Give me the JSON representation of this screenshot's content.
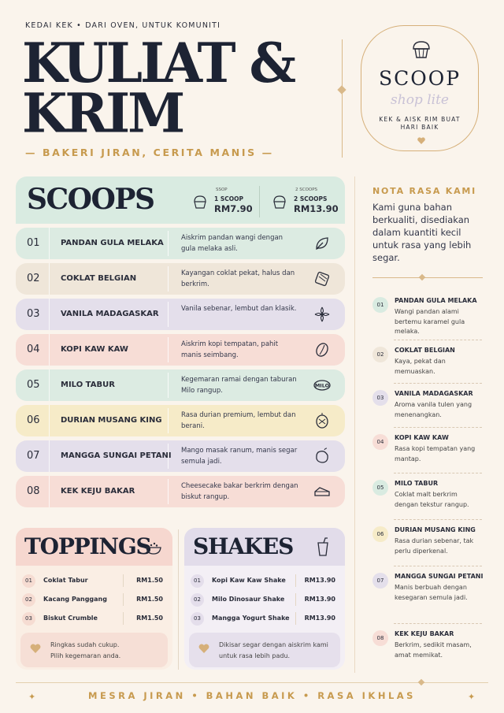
{
  "header": {
    "kicker": "KEDAI KEK • DARI OVEN, UNTUK KOMUNITI",
    "title_line1": "KULIAT &",
    "title_line2": "KRIM",
    "subtitle": "— BAKERI JIRAN, CERITA MANIS —"
  },
  "badge": {
    "brand": "SCOOP",
    "script": "shop lite",
    "tagline": "KEK & AISK RIM BUAT HARI BAIK"
  },
  "scoops": {
    "title": "SCOOPS",
    "prices": [
      {
        "small": "SSOP",
        "label": "1 SCOOP",
        "value": "RM7.90"
      },
      {
        "small": "2 SCOOPS",
        "label": "2 SCOOPS",
        "value": "RM13.90"
      }
    ],
    "items": [
      {
        "num": "01",
        "name": "PANDAN GULA MELAKA",
        "desc": "Aiskrim pandan wangi dengan gula melaka asli.",
        "icon": "leaf-icon",
        "color": "#dcebe2"
      },
      {
        "num": "02",
        "name": "COKLAT BELGIAN",
        "desc": "Kayangan coklat pekat, halus dan berkrim.",
        "icon": "chocolate-icon",
        "color": "#efe6d9"
      },
      {
        "num": "03",
        "name": "VANILA MADAGASKAR",
        "desc": "Vanila sebenar, lembut dan klasik.",
        "icon": "vanilla-flower-icon",
        "color": "#e4dfeb"
      },
      {
        "num": "04",
        "name": "KOPI KAW KAW",
        "desc": "Aiskrim kopi tempatan, pahit manis seimbang.",
        "icon": "coffee-bean-icon",
        "color": "#f7ddd6"
      },
      {
        "num": "05",
        "name": "MILO TABUR",
        "desc": "Kegemaran ramai dengan taburan Milo rangup.",
        "icon": "milo-icon",
        "color": "#dcebe2"
      },
      {
        "num": "06",
        "name": "DURIAN MUSANG KING",
        "desc": "Rasa durian premium, lembut dan berani.",
        "icon": "durian-icon",
        "color": "#f6ebc8"
      },
      {
        "num": "07",
        "name": "MANGGA SUNGAI PETANI",
        "desc": "Mango masak ranum, manis segar semula jadi.",
        "icon": "mango-icon",
        "color": "#e4dfeb"
      },
      {
        "num": "08",
        "name": "KEK KEJU BAKAR",
        "desc": "Cheesecake bakar berkrim dengan biskut rangup.",
        "icon": "cake-slice-icon",
        "color": "#f7ddd6"
      }
    ]
  },
  "toppings": {
    "title": "TOPPINGS",
    "items": [
      {
        "num": "01",
        "name": "Coklat Tabur",
        "price": "RM1.50"
      },
      {
        "num": "02",
        "name": "Kacang Panggang",
        "price": "RM1.50"
      },
      {
        "num": "03",
        "name": "Biskut Crumble",
        "price": "RM1.50"
      }
    ],
    "note": [
      "Ringkas sudah cukup.",
      "Pilih kegemaran anda."
    ]
  },
  "shakes": {
    "title": "SHAKES",
    "items": [
      {
        "num": "01",
        "name": "Kopi Kaw Kaw Shake",
        "price": "RM13.90"
      },
      {
        "num": "02",
        "name": "Milo Dinosaur Shake",
        "price": "RM13.90"
      },
      {
        "num": "03",
        "name": "Mangga Yogurt Shake",
        "price": "RM13.90"
      }
    ],
    "note": [
      "Dikisar segar dengan aiskrim kami",
      "untuk rasa lebih padu."
    ]
  },
  "sidebar": {
    "title": "NOTA RASA KAMI",
    "intro": "Kami guna bahan berkualiti, disediakan dalam kuantiti kecil untuk rasa yang lebih segar.",
    "items": [
      {
        "num": "01",
        "name": "PANDAN GULA MELAKA",
        "desc": "Wangi pandan alami bertemu karamel gula melaka.",
        "color": "#d9ebe1"
      },
      {
        "num": "02",
        "name": "COKLAT BELGIAN",
        "desc": "Kaya, pekat dan memuaskan.",
        "color": "#efe6d9"
      },
      {
        "num": "03",
        "name": "VANILA MADAGASKAR",
        "desc": "Aroma vanila tulen yang menenangkan.",
        "color": "#e4dfeb"
      },
      {
        "num": "04",
        "name": "KOPI KAW KAW",
        "desc": "Rasa kopi tempatan yang mantap.",
        "color": "#f7ddd6"
      },
      {
        "num": "05",
        "name": "MILO TABUR",
        "desc": "Coklat malt berkrim dengan tekstur rangup.",
        "color": "#d9ebe1"
      },
      {
        "num": "06",
        "name": "DURIAN MUSANG KING",
        "desc": "Rasa durian sebenar, tak perlu diperkenal.",
        "color": "#f6ebc8"
      },
      {
        "num": "07",
        "name": "MANGGA SUNGAI PETANI",
        "desc": "Manis berbuah dengan kesegaran semula jadi.",
        "color": "#e4dfeb"
      },
      {
        "num": "08",
        "name": "KEK KEJU BAKAR",
        "desc": "Berkrim, sedikit masam, amat memikat.",
        "color": "#f7ddd6"
      }
    ]
  },
  "footer": "MESRA JIRAN   •   BAHAN BAIK   •   RASA IKHLAS"
}
